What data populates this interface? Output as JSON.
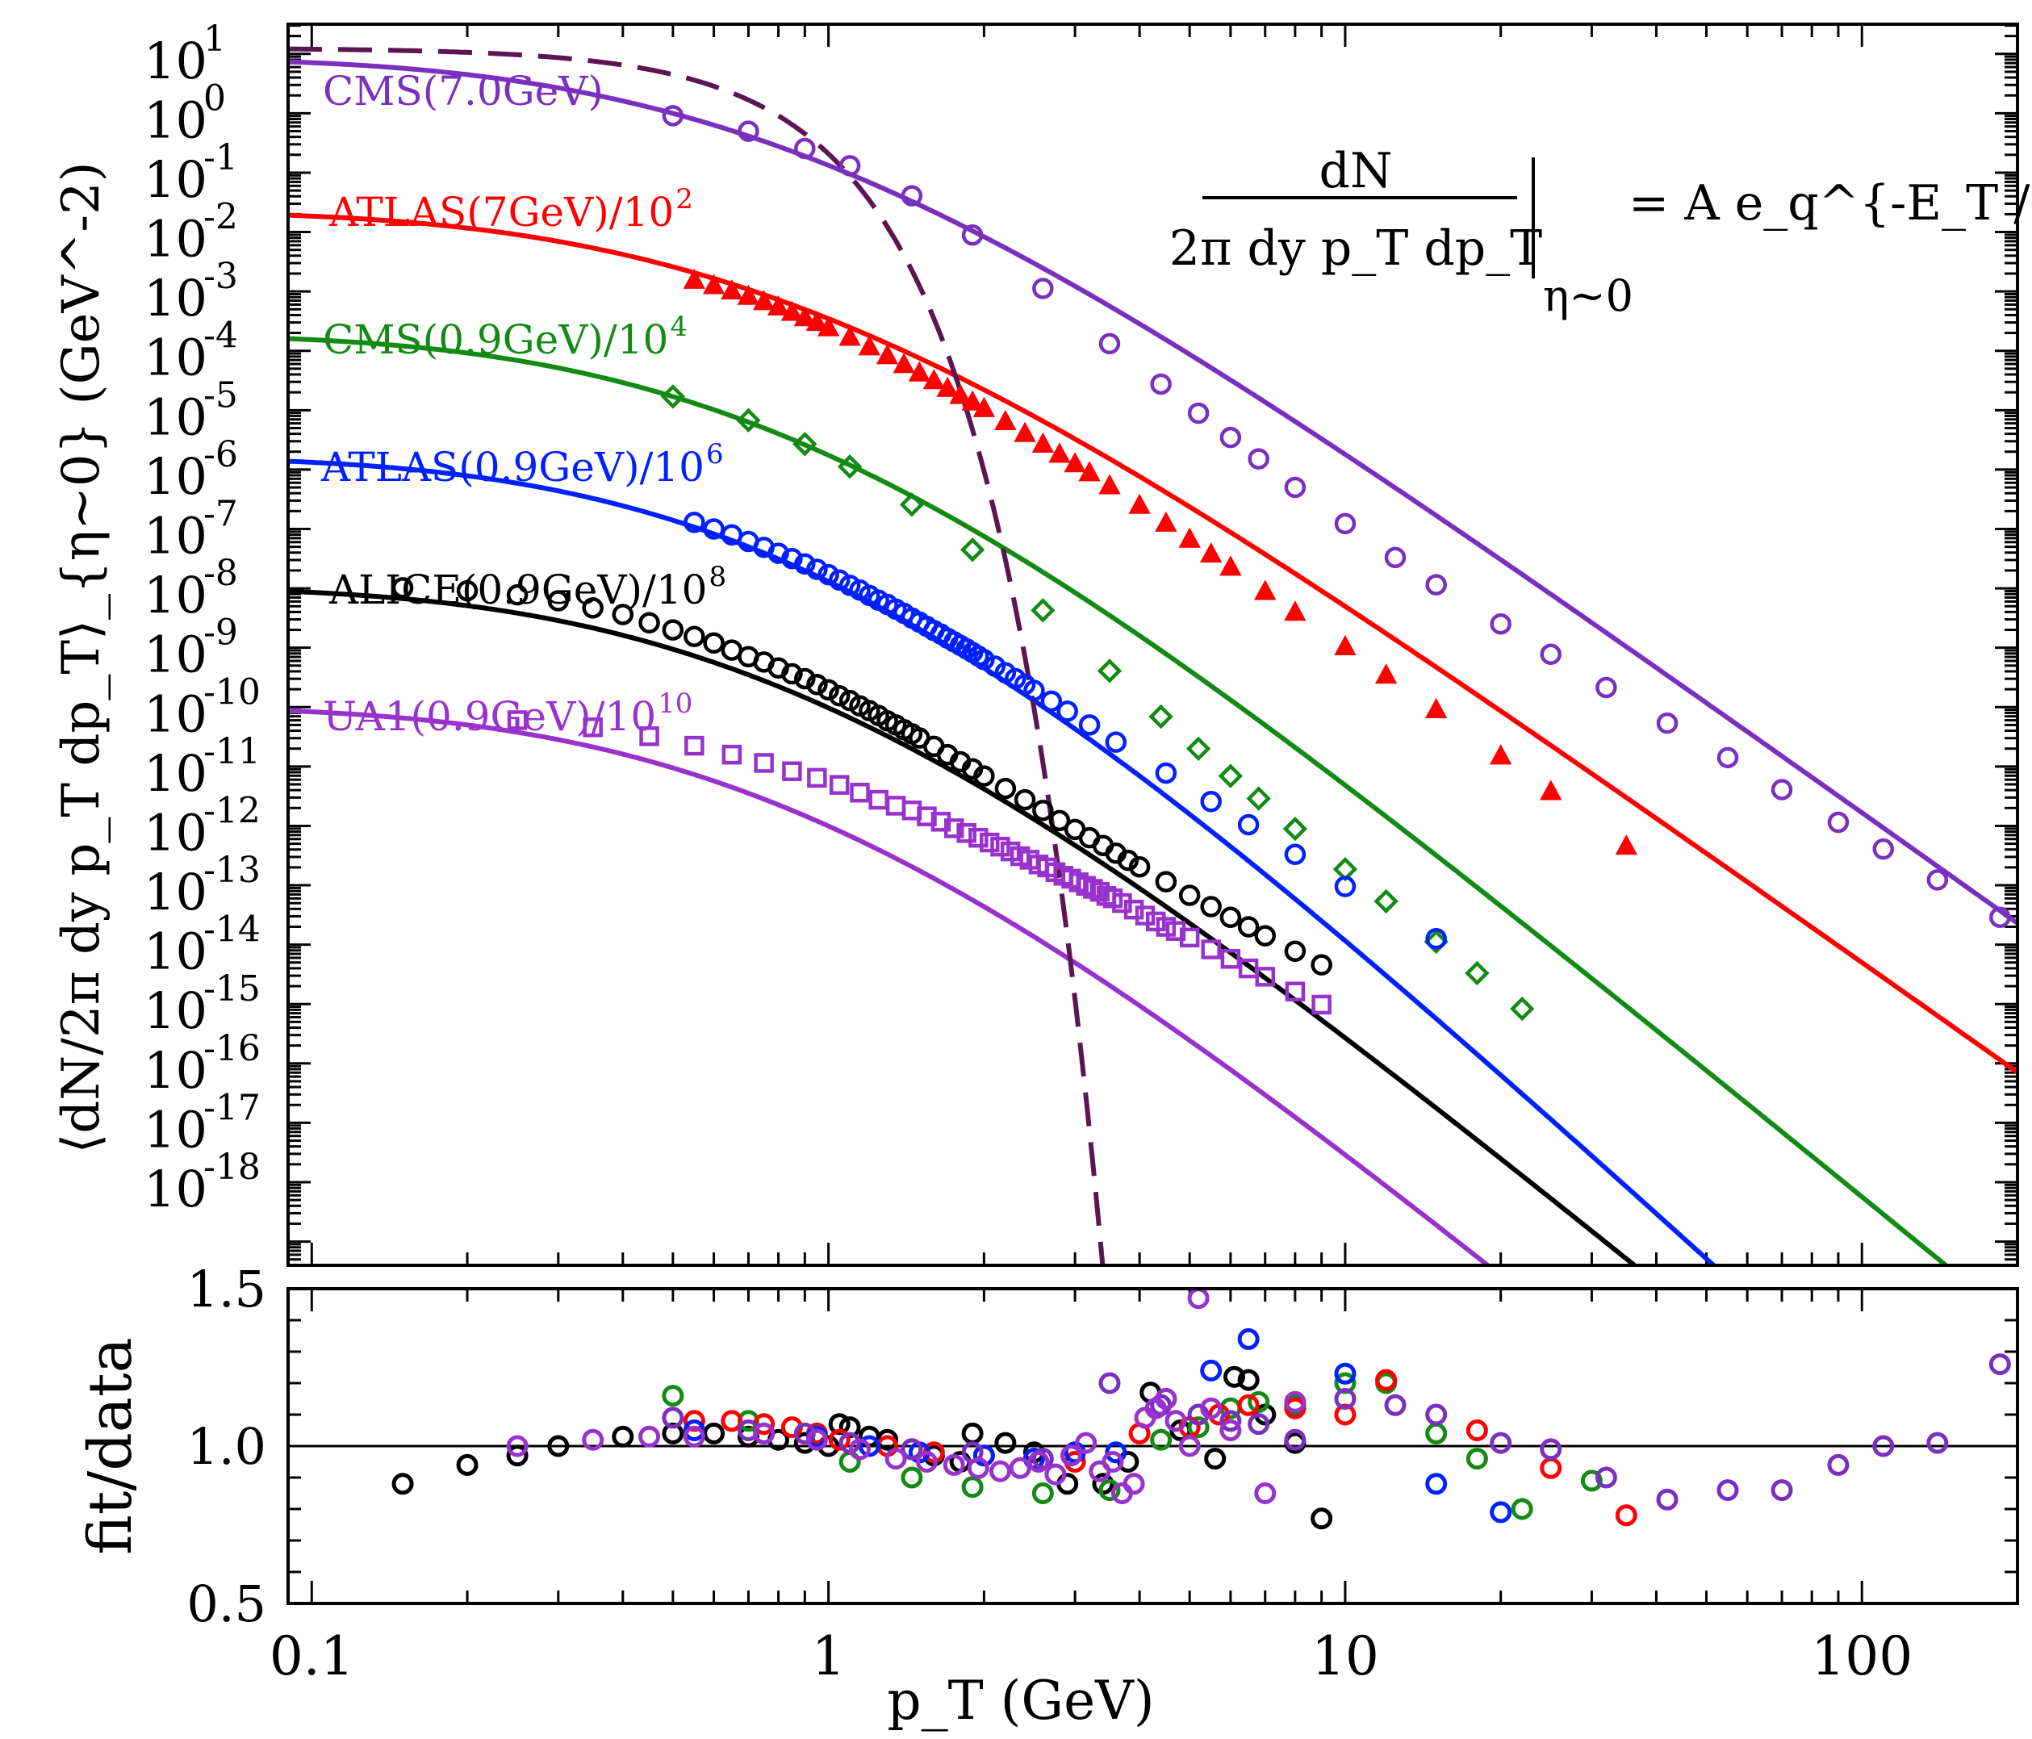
{
  "colors": {
    "cms7": "#7b2fbf",
    "atlas7": "#ff0000",
    "cms09": "#138a13",
    "atlas09": "#0020ff",
    "alice": "#000000",
    "ua1": "#9932cc",
    "exp_fit": "#5b1553",
    "frame": "#000000",
    "background": "#ffffff"
  },
  "chart_data": [
    {
      "type": "scatter",
      "panel": "spectra",
      "title": "",
      "xlabel": "p_T (GeV)",
      "ylabel": "⟨dN/2π dy p_T dp_T⟩_{η~0} (GeV^-2)",
      "xscale": "log",
      "yscale": "log",
      "xlim": [
        0.09,
        200
      ],
      "ylim_log10": [
        -19.4,
        1.5
      ],
      "x_tick_labels": [
        "0.1",
        "1",
        "10",
        "100"
      ],
      "y_tick_labels": [
        {
          "base": "10",
          "exp": "1"
        },
        {
          "base": "10",
          "exp": "0"
        },
        {
          "base": "10",
          "exp": "-1"
        },
        {
          "base": "10",
          "exp": "-2"
        },
        {
          "base": "10",
          "exp": "-3"
        },
        {
          "base": "10",
          "exp": "-4"
        },
        {
          "base": "10",
          "exp": "-5"
        },
        {
          "base": "10",
          "exp": "-6"
        },
        {
          "base": "10",
          "exp": "-7"
        },
        {
          "base": "10",
          "exp": "-8"
        },
        {
          "base": "10",
          "exp": "-9"
        },
        {
          "base": "10",
          "exp": "-10"
        },
        {
          "base": "10",
          "exp": "-11"
        },
        {
          "base": "10",
          "exp": "-12"
        },
        {
          "base": "10",
          "exp": "-13"
        },
        {
          "base": "10",
          "exp": "-14"
        },
        {
          "base": "10",
          "exp": "-15"
        },
        {
          "base": "10",
          "exp": "-16"
        },
        {
          "base": "10",
          "exp": "-17"
        },
        {
          "base": "10",
          "exp": "-18"
        }
      ],
      "formula": {
        "numerator": "dN",
        "denominator": "2π dy p_T dp_T",
        "evaluated_at": "η~0",
        "rhs": "= A e_q^{-E_T / T}"
      },
      "series": [
        {
          "name": "CMS(7.0GeV)",
          "label_main": "CMS(7.0GeV)",
          "label_exp": "",
          "color_key": "cms7",
          "marker": "circle",
          "fit": {
            "a": 0.947,
            "T": 0.145,
            "q": 1.161
          },
          "x": [
            0.5,
            0.7,
            0.9,
            1.1,
            1.45,
            1.9,
            2.6,
            3.5,
            4.4,
            5.2,
            6.0,
            6.8,
            8.0,
            10.0,
            12.5,
            15.0,
            20.0,
            25.0,
            32.0,
            42.0,
            55.0,
            70.0,
            90.0,
            110.0,
            140.0,
            185.0
          ],
          "y_log10": [
            -0.041,
            -0.303,
            -0.593,
            -0.884,
            -1.39,
            -2.05,
            -2.95,
            -3.88,
            -4.56,
            -5.05,
            -5.46,
            -5.82,
            -6.3,
            -6.91,
            -7.48,
            -7.94,
            -8.6,
            -9.11,
            -9.67,
            -10.27,
            -10.85,
            -11.39,
            -11.94,
            -12.39,
            -12.91,
            -13.54
          ]
        },
        {
          "name": "ATLAS(7GeV)/10^2",
          "label_main": "ATLAS(7GeV)/10",
          "label_exp": "2",
          "color_key": "atlas7",
          "marker": "triangle",
          "fit": {
            "a": -1.638,
            "T": 0.145,
            "q": 1.162
          },
          "x": [
            0.55,
            0.6,
            0.65,
            0.7,
            0.75,
            0.8,
            0.85,
            0.9,
            0.95,
            1.0,
            1.1,
            1.2,
            1.3,
            1.4,
            1.5,
            1.6,
            1.7,
            1.8,
            1.9,
            2.0,
            2.2,
            2.4,
            2.6,
            2.8,
            3.0,
            3.2,
            3.5,
            4.0,
            4.5,
            5.0,
            5.5,
            6.0,
            7.0,
            8.0,
            10.0,
            12.0,
            15.0,
            20.0,
            25.0,
            35.0
          ],
          "y_log10": [
            -2.82,
            -2.91,
            -3.0,
            -3.09,
            -3.18,
            -3.27,
            -3.36,
            -3.45,
            -3.53,
            -3.62,
            -3.78,
            -3.94,
            -4.09,
            -4.24,
            -4.38,
            -4.51,
            -4.64,
            -4.76,
            -4.87,
            -4.98,
            -5.2,
            -5.4,
            -5.58,
            -5.75,
            -5.91,
            -6.06,
            -6.28,
            -6.61,
            -6.91,
            -7.18,
            -7.43,
            -7.65,
            -8.06,
            -8.41,
            -8.99,
            -9.47,
            -10.05,
            -10.83,
            -11.43,
            -12.35
          ]
        },
        {
          "name": "CMS(0.9GeV)/10^4",
          "label_main": "CMS(0.9GeV)/10",
          "label_exp": "4",
          "color_key": "cms09",
          "marker": "diamond",
          "fit": {
            "a": -3.707,
            "T": 0.13,
            "q": 1.14
          },
          "x": [
            0.5,
            0.7,
            0.9,
            1.1,
            1.45,
            1.9,
            2.6,
            3.5,
            4.4,
            5.2,
            6.0,
            6.8,
            8.0,
            10.0,
            12.0,
            15.0,
            18.0,
            22.0
          ],
          "y_log10": [
            -4.77,
            -5.17,
            -5.57,
            -5.95,
            -6.59,
            -7.35,
            -8.37,
            -9.39,
            -10.16,
            -10.7,
            -11.16,
            -11.54,
            -12.05,
            -12.73,
            -13.27,
            -13.95,
            -14.48,
            -15.08
          ]
        },
        {
          "name": "ATLAS(0.9GeV)/10^6",
          "label_main": "ATLAS(0.9GeV)/10",
          "label_exp": "6",
          "color_key": "atlas09",
          "marker": "circle",
          "fit": {
            "a": -5.772,
            "T": 0.13,
            "q": 1.125
          },
          "x": [
            0.55,
            0.6,
            0.65,
            0.7,
            0.75,
            0.8,
            0.85,
            0.9,
            0.95,
            1.0,
            1.05,
            1.1,
            1.15,
            1.2,
            1.25,
            1.3,
            1.35,
            1.4,
            1.45,
            1.5,
            1.55,
            1.6,
            1.65,
            1.7,
            1.75,
            1.8,
            1.85,
            1.9,
            1.95,
            2.0,
            2.1,
            2.2,
            2.3,
            2.4,
            2.5,
            2.7,
            2.9,
            3.2,
            3.6,
            4.5,
            5.5,
            6.5,
            8.0,
            10.0,
            15.0
          ],
          "y_log10": [
            -6.89,
            -7.0,
            -7.1,
            -7.21,
            -7.31,
            -7.41,
            -7.5,
            -7.59,
            -7.68,
            -7.77,
            -7.86,
            -7.95,
            -8.03,
            -8.12,
            -8.2,
            -8.27,
            -8.35,
            -8.42,
            -8.5,
            -8.57,
            -8.64,
            -8.71,
            -8.77,
            -8.84,
            -8.9,
            -8.96,
            -9.02,
            -9.08,
            -9.14,
            -9.2,
            -9.31,
            -9.42,
            -9.52,
            -9.62,
            -9.72,
            -9.9,
            -10.07,
            -10.3,
            -10.59,
            -11.11,
            -11.59,
            -11.98,
            -12.48,
            -13.02,
            -13.9
          ]
        },
        {
          "name": "ALICE(0.9GeV)/10^8",
          "label_main": "ALICE(0.9GeV)/10",
          "label_exp": "8",
          "color_key": "alice",
          "marker": "circle",
          "fit": {
            "a": -7.962,
            "T": 0.13,
            "q": 1.14
          },
          "x": [
            0.15,
            0.2,
            0.25,
            0.3,
            0.35,
            0.4,
            0.45,
            0.5,
            0.55,
            0.6,
            0.65,
            0.7,
            0.75,
            0.8,
            0.85,
            0.9,
            0.95,
            1.0,
            1.05,
            1.1,
            1.15,
            1.2,
            1.25,
            1.3,
            1.35,
            1.4,
            1.45,
            1.5,
            1.6,
            1.7,
            1.8,
            1.9,
            2.0,
            2.2,
            2.4,
            2.6,
            2.8,
            3.0,
            3.2,
            3.4,
            3.6,
            3.8,
            4.0,
            4.5,
            5.0,
            5.5,
            6.0,
            6.5,
            7.0,
            8.0,
            9.0
          ],
          "y_log10": [
            -7.99,
            -8.04,
            -8.11,
            -8.21,
            -8.33,
            -8.44,
            -8.58,
            -8.7,
            -8.81,
            -8.92,
            -9.04,
            -9.15,
            -9.24,
            -9.34,
            -9.44,
            -9.52,
            -9.62,
            -9.71,
            -9.81,
            -9.89,
            -9.98,
            -10.06,
            -10.14,
            -10.23,
            -10.3,
            -10.38,
            -10.45,
            -10.52,
            -10.66,
            -10.8,
            -10.92,
            -11.04,
            -11.16,
            -11.37,
            -11.56,
            -11.74,
            -11.91,
            -12.06,
            -12.2,
            -12.33,
            -12.46,
            -12.58,
            -12.69,
            -12.94,
            -13.17,
            -13.36,
            -13.54,
            -13.7,
            -13.85,
            -14.11,
            -14.34
          ]
        },
        {
          "name": "UA1(0.9GeV)/10^10",
          "label_main": "UA1(0.9GeV)/10",
          "label_exp": "10",
          "color_key": "ua1",
          "marker": "square",
          "fit": {
            "a": -9.975,
            "T": 0.132,
            "q": 1.14
          },
          "x": [
            0.25,
            0.35,
            0.45,
            0.55,
            0.65,
            0.75,
            0.85,
            0.95,
            1.05,
            1.15,
            1.25,
            1.35,
            1.45,
            1.55,
            1.65,
            1.75,
            1.85,
            1.95,
            2.05,
            2.15,
            2.25,
            2.35,
            2.45,
            2.55,
            2.65,
            2.75,
            2.85,
            2.95,
            3.05,
            3.15,
            3.25,
            3.35,
            3.45,
            3.55,
            3.7,
            3.9,
            4.1,
            4.3,
            4.5,
            4.7,
            5.0,
            5.5,
            6.0,
            6.5,
            7.0,
            8.0,
            9.0
          ],
          "y_log10": [
            -10.22,
            -10.34,
            -10.49,
            -10.65,
            -10.8,
            -10.94,
            -11.08,
            -11.19,
            -11.31,
            -11.44,
            -11.56,
            -11.66,
            -11.74,
            -11.84,
            -11.93,
            -12.04,
            -12.12,
            -12.2,
            -12.28,
            -12.35,
            -12.43,
            -12.51,
            -12.57,
            -12.65,
            -12.7,
            -12.78,
            -12.84,
            -12.89,
            -12.95,
            -13.01,
            -13.06,
            -13.11,
            -13.18,
            -13.22,
            -13.3,
            -13.41,
            -13.51,
            -13.61,
            -13.7,
            -13.77,
            -13.88,
            -14.08,
            -14.24,
            -14.4,
            -14.54,
            -14.79,
            -15.01
          ]
        }
      ],
      "exponential_fit": {
        "name": "exponential (dashed)",
        "color_key": "exp_fit",
        "a": 1.097,
        "b": 3.56,
        "x_range": [
          0.09,
          7.0
        ]
      }
    },
    {
      "type": "scatter",
      "panel": "ratio",
      "xlabel": "p_T (GeV)",
      "ylabel": "fit/data",
      "xscale": "log",
      "xlim": [
        0.09,
        200
      ],
      "ylim": [
        0.5,
        1.5
      ],
      "x_tick_labels": [
        "0.1",
        "1",
        "10",
        "100"
      ],
      "y_tick_labels": [
        "0.5",
        "1.0",
        "1.5"
      ],
      "reference_line": 1.0,
      "series": [
        {
          "name": "ALICE",
          "color_key": "alice",
          "x": [
            0.15,
            0.2,
            0.25,
            0.3,
            0.4,
            0.5,
            0.6,
            0.7,
            0.8,
            0.9,
            1.0,
            1.05,
            1.1,
            1.2,
            1.3,
            1.45,
            1.6,
            1.8,
            1.9,
            2.2,
            2.5,
            2.9,
            3.4,
            3.8,
            4.2,
            4.8,
            5.6,
            6.1,
            6.5,
            7.0,
            8.0,
            9.0
          ],
          "y": [
            0.88,
            0.94,
            0.97,
            1.0,
            1.03,
            1.04,
            1.04,
            1.03,
            1.02,
            1.01,
            1.0,
            1.07,
            1.06,
            1.03,
            1.02,
            0.99,
            0.97,
            0.95,
            1.04,
            1.01,
            0.98,
            0.88,
            0.88,
            0.95,
            1.17,
            1.05,
            0.96,
            1.22,
            1.21,
            1.1,
            1.01,
            0.77
          ]
        },
        {
          "name": "CMS(0.9GeV)",
          "color_key": "cms09",
          "x": [
            0.5,
            0.7,
            1.1,
            1.45,
            1.9,
            2.6,
            3.5,
            4.4,
            5.2,
            6.0,
            6.8,
            8.0,
            10.0,
            12.0,
            15.0,
            18.0,
            22.0,
            30.0
          ],
          "y": [
            1.16,
            1.08,
            0.95,
            0.9,
            0.87,
            0.85,
            0.86,
            1.02,
            1.06,
            1.12,
            1.14,
            1.13,
            1.2,
            1.2,
            1.04,
            0.96,
            0.8,
            0.89
          ]
        },
        {
          "name": "ATLAS(7GeV)",
          "color_key": "atlas7",
          "x": [
            0.55,
            0.65,
            0.75,
            0.85,
            0.95,
            1.05,
            1.3,
            1.6,
            2.0,
            2.5,
            3.0,
            4.0,
            5.0,
            5.7,
            6.5,
            8.0,
            10.0,
            12.0,
            18.0,
            25.0,
            35.0
          ],
          "y": [
            1.08,
            1.08,
            1.07,
            1.06,
            1.04,
            1.02,
            1.0,
            0.98,
            0.97,
            0.96,
            0.95,
            1.04,
            1.06,
            1.1,
            1.13,
            1.12,
            1.1,
            1.21,
            1.05,
            0.93,
            0.78
          ]
        },
        {
          "name": "ATLAS(0.9GeV)",
          "color_key": "atlas09",
          "x": [
            0.55,
            0.75,
            0.95,
            1.2,
            1.5,
            2.0,
            2.5,
            3.0,
            3.6,
            4.5,
            5.5,
            6.5,
            8.0,
            10.0,
            15.0,
            20.0
          ],
          "y": [
            1.05,
            1.04,
            1.03,
            1.0,
            0.98,
            0.97,
            0.96,
            0.98,
            0.98,
            1.15,
            1.24,
            1.34,
            1.14,
            1.23,
            0.88,
            0.79
          ]
        },
        {
          "name": "CMS(7.0GeV)",
          "color_key": "cms7",
          "x": [
            0.5,
            0.7,
            0.9,
            1.1,
            1.45,
            1.9,
            2.6,
            3.5,
            4.4,
            5.2,
            6.0,
            6.8,
            8.0,
            10.0,
            12.5,
            15.0,
            20.0,
            25.0,
            32.0,
            42.0,
            55.0,
            70.0,
            90.0,
            110.0,
            140.0,
            185.0
          ],
          "y": [
            1.09,
            1.05,
            1.04,
            1.01,
            0.99,
            0.98,
            0.96,
            1.2,
            1.13,
            1.1,
            1.08,
            1.07,
            1.02,
            1.15,
            1.13,
            1.1,
            1.01,
            0.99,
            0.9,
            0.83,
            0.86,
            0.86,
            0.94,
            1.0,
            1.01,
            1.26
          ]
        },
        {
          "name": "UA1(0.9GeV)",
          "color_key": "ua1",
          "x": [
            0.25,
            0.35,
            0.45,
            0.55,
            0.75,
            0.95,
            1.15,
            1.35,
            1.55,
            1.75,
            1.95,
            2.15,
            2.35,
            2.55,
            2.75,
            2.95,
            3.15,
            3.35,
            3.55,
            3.7,
            3.9,
            4.1,
            4.3,
            4.5,
            4.7,
            5.0,
            5.2,
            5.5,
            6.0,
            7.0,
            8.0
          ],
          "y": [
            1.0,
            1.02,
            1.03,
            1.03,
            1.04,
            1.02,
            0.99,
            0.96,
            0.95,
            0.94,
            0.93,
            0.92,
            0.93,
            0.95,
            0.91,
            0.97,
            1.01,
            0.92,
            0.95,
            0.85,
            0.88,
            1.09,
            1.12,
            1.15,
            1.08,
            1.0,
            1.47,
            1.12,
            1.05,
            0.85,
            1.14
          ]
        }
      ]
    }
  ]
}
